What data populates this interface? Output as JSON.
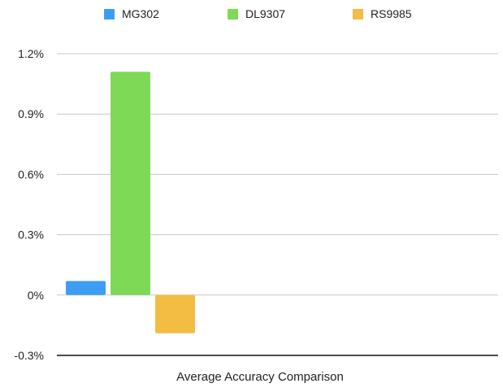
{
  "chart_data": {
    "type": "bar",
    "title": "",
    "xlabel": "Average Accuracy Comparison",
    "ylabel": "",
    "categories": [
      "Average Accuracy Comparison"
    ],
    "series": [
      {
        "name": "MG302",
        "values": [
          0.07
        ],
        "color": "#3d9df3"
      },
      {
        "name": "DL9307",
        "values": [
          1.11
        ],
        "color": "#7ed957"
      },
      {
        "name": "RS9985",
        "values": [
          -0.19
        ],
        "color": "#f2bd42"
      }
    ],
    "ylim": [
      -0.3,
      1.2
    ],
    "yticks": [
      -0.3,
      0,
      0.3,
      0.6,
      0.9,
      1.2
    ],
    "ytick_labels": [
      "-0.3%",
      "0%",
      "0.3%",
      "0.6%",
      "0.9%",
      "1.2%"
    ],
    "y_unit": "%",
    "grid": true,
    "legend_position": "top"
  }
}
